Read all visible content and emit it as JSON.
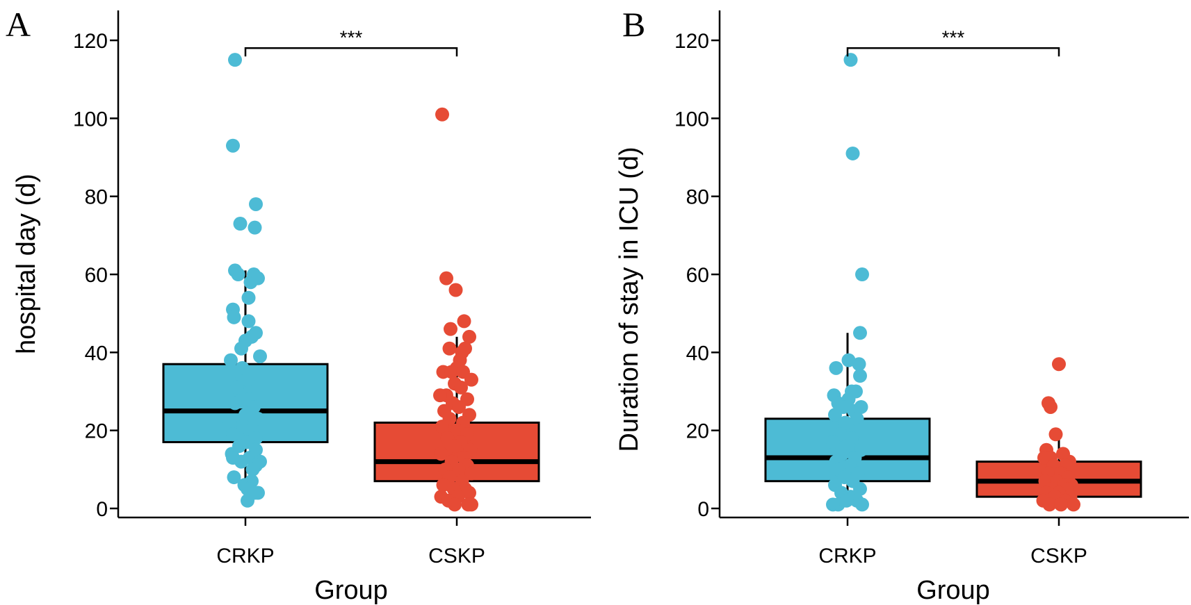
{
  "chart_data": [
    {
      "type": "boxplot-with-jitter",
      "panel_label": "A",
      "xlabel": "Group",
      "ylabel": "hospital day (d)",
      "ylim": [
        0,
        125
      ],
      "yticks": [
        0,
        20,
        40,
        60,
        80,
        100,
        120
      ],
      "categories": [
        "CRKP",
        "CSKP"
      ],
      "significance": {
        "groups": [
          "CRKP",
          "CSKP"
        ],
        "label": "***",
        "y": 118
      },
      "series": [
        {
          "name": "CRKP",
          "color": "#4DBBD5",
          "box": {
            "whisker_low": 2,
            "q1": 17,
            "median": 25,
            "q3": 37,
            "whisker_high": 61
          },
          "points": [
            {
              "offset": -0.1,
              "y": 115
            },
            {
              "offset": -0.12,
              "y": 93
            },
            {
              "offset": 0.1,
              "y": 78
            },
            {
              "offset": -0.05,
              "y": 73
            },
            {
              "offset": 0.09,
              "y": 72
            },
            {
              "offset": -0.1,
              "y": 61
            },
            {
              "offset": -0.07,
              "y": 60
            },
            {
              "offset": 0.05,
              "y": 58
            },
            {
              "offset": 0.08,
              "y": 60
            },
            {
              "offset": 0.12,
              "y": 59
            },
            {
              "offset": 0.03,
              "y": 54
            },
            {
              "offset": -0.12,
              "y": 51
            },
            {
              "offset": -0.11,
              "y": 49
            },
            {
              "offset": 0.03,
              "y": 48
            },
            {
              "offset": 0.1,
              "y": 45
            },
            {
              "offset": 0.0,
              "y": 43
            },
            {
              "offset": 0.06,
              "y": 44
            },
            {
              "offset": -0.04,
              "y": 41
            },
            {
              "offset": 0.14,
              "y": 39
            },
            {
              "offset": -0.14,
              "y": 38
            },
            {
              "offset": -0.13,
              "y": 35
            },
            {
              "offset": -0.03,
              "y": 36
            },
            {
              "offset": 0.02,
              "y": 33
            },
            {
              "offset": -0.08,
              "y": 31
            },
            {
              "offset": 0.04,
              "y": 28
            },
            {
              "offset": -0.1,
              "y": 27
            },
            {
              "offset": 0.08,
              "y": 26
            },
            {
              "offset": 0.0,
              "y": 24
            },
            {
              "offset": 0.12,
              "y": 23
            },
            {
              "offset": -0.15,
              "y": 22
            },
            {
              "offset": -0.02,
              "y": 21
            },
            {
              "offset": 0.06,
              "y": 20
            },
            {
              "offset": -0.12,
              "y": 19
            },
            {
              "offset": 0.1,
              "y": 18
            },
            {
              "offset": 0.02,
              "y": 17
            },
            {
              "offset": -0.06,
              "y": 16
            },
            {
              "offset": 0.1,
              "y": 15
            },
            {
              "offset": -0.13,
              "y": 14
            },
            {
              "offset": 0.04,
              "y": 13
            },
            {
              "offset": -0.12,
              "y": 13
            },
            {
              "offset": -0.04,
              "y": 12
            },
            {
              "offset": 0.14,
              "y": 12
            },
            {
              "offset": 0.1,
              "y": 11
            },
            {
              "offset": 0.07,
              "y": 10
            },
            {
              "offset": -0.11,
              "y": 8
            },
            {
              "offset": 0.06,
              "y": 7
            },
            {
              "offset": -0.01,
              "y": 6
            },
            {
              "offset": 0.02,
              "y": 5
            },
            {
              "offset": 0.12,
              "y": 4
            },
            {
              "offset": 0.09,
              "y": 4
            },
            {
              "offset": 0.02,
              "y": 2
            }
          ]
        },
        {
          "name": "CSKP",
          "color": "#E64B35",
          "box": {
            "whisker_low": 1,
            "q1": 7,
            "median": 12,
            "q3": 22,
            "whisker_high": 44
          },
          "points": [
            {
              "offset": -0.14,
              "y": 101
            },
            {
              "offset": -0.1,
              "y": 59
            },
            {
              "offset": -0.01,
              "y": 56
            },
            {
              "offset": 0.07,
              "y": 48
            },
            {
              "offset": -0.06,
              "y": 46
            },
            {
              "offset": 0.12,
              "y": 44
            },
            {
              "offset": 0.08,
              "y": 41
            },
            {
              "offset": -0.07,
              "y": 41
            },
            {
              "offset": 0.05,
              "y": 40
            },
            {
              "offset": 0.03,
              "y": 38
            },
            {
              "offset": 0.0,
              "y": 36
            },
            {
              "offset": -0.13,
              "y": 35
            },
            {
              "offset": -0.05,
              "y": 35
            },
            {
              "offset": 0.06,
              "y": 35
            },
            {
              "offset": 0.14,
              "y": 33
            },
            {
              "offset": -0.02,
              "y": 32
            },
            {
              "offset": 0.04,
              "y": 31
            },
            {
              "offset": -0.1,
              "y": 29
            },
            {
              "offset": -0.16,
              "y": 29
            },
            {
              "offset": 0.1,
              "y": 28
            },
            {
              "offset": -0.04,
              "y": 27
            },
            {
              "offset": 0.02,
              "y": 26
            },
            {
              "offset": -0.12,
              "y": 25
            },
            {
              "offset": 0.12,
              "y": 24
            },
            {
              "offset": -0.07,
              "y": 23
            },
            {
              "offset": 0.06,
              "y": 22
            },
            {
              "offset": -0.14,
              "y": 21
            },
            {
              "offset": 0.0,
              "y": 20
            },
            {
              "offset": 0.1,
              "y": 19
            },
            {
              "offset": -0.09,
              "y": 18
            },
            {
              "offset": 0.04,
              "y": 17
            },
            {
              "offset": -0.02,
              "y": 16
            },
            {
              "offset": 0.13,
              "y": 15
            },
            {
              "offset": -0.15,
              "y": 14
            },
            {
              "offset": 0.07,
              "y": 13
            },
            {
              "offset": -0.05,
              "y": 12
            },
            {
              "offset": 0.1,
              "y": 11
            },
            {
              "offset": -0.11,
              "y": 10
            },
            {
              "offset": 0.02,
              "y": 10
            },
            {
              "offset": 0.14,
              "y": 9
            },
            {
              "offset": -0.07,
              "y": 8
            },
            {
              "offset": 0.05,
              "y": 7
            },
            {
              "offset": -0.13,
              "y": 6
            },
            {
              "offset": 0.08,
              "y": 5
            },
            {
              "offset": -0.03,
              "y": 5
            },
            {
              "offset": 0.12,
              "y": 4
            },
            {
              "offset": -0.15,
              "y": 3
            },
            {
              "offset": 0.01,
              "y": 3
            },
            {
              "offset": -0.08,
              "y": 2
            },
            {
              "offset": 0.14,
              "y": 1
            },
            {
              "offset": 0.11,
              "y": 1
            },
            {
              "offset": -0.02,
              "y": 1
            }
          ]
        }
      ]
    },
    {
      "type": "boxplot-with-jitter",
      "panel_label": "B",
      "xlabel": "Group",
      "ylabel": "Duration of stay in ICU (d)",
      "ylim": [
        0,
        125
      ],
      "yticks": [
        0,
        20,
        40,
        60,
        80,
        100,
        120
      ],
      "categories": [
        "CRKP",
        "CSKP"
      ],
      "significance": {
        "groups": [
          "CRKP",
          "CSKP"
        ],
        "label": "***",
        "y": 118
      },
      "series": [
        {
          "name": "CRKP",
          "color": "#4DBBD5",
          "box": {
            "whisker_low": 1,
            "q1": 7,
            "median": 13,
            "q3": 23,
            "whisker_high": 45
          },
          "points": [
            {
              "offset": 0.03,
              "y": 115
            },
            {
              "offset": 0.05,
              "y": 91
            },
            {
              "offset": 0.14,
              "y": 60
            },
            {
              "offset": 0.12,
              "y": 45
            },
            {
              "offset": 0.01,
              "y": 38
            },
            {
              "offset": 0.11,
              "y": 37
            },
            {
              "offset": -0.11,
              "y": 36
            },
            {
              "offset": 0.12,
              "y": 34
            },
            {
              "offset": 0.08,
              "y": 30
            },
            {
              "offset": 0.04,
              "y": 30
            },
            {
              "offset": -0.13,
              "y": 29
            },
            {
              "offset": 0.01,
              "y": 28
            },
            {
              "offset": -0.09,
              "y": 27
            },
            {
              "offset": -0.04,
              "y": 26
            },
            {
              "offset": 0.13,
              "y": 26
            },
            {
              "offset": 0.06,
              "y": 25
            },
            {
              "offset": -0.12,
              "y": 24
            },
            {
              "offset": 0.09,
              "y": 23
            },
            {
              "offset": -0.02,
              "y": 22
            },
            {
              "offset": 0.11,
              "y": 20
            },
            {
              "offset": -0.07,
              "y": 19
            },
            {
              "offset": 0.04,
              "y": 18
            },
            {
              "offset": -0.14,
              "y": 17
            },
            {
              "offset": 0.0,
              "y": 16
            },
            {
              "offset": 0.13,
              "y": 15
            },
            {
              "offset": -0.05,
              "y": 14
            },
            {
              "offset": 0.07,
              "y": 13
            },
            {
              "offset": -0.11,
              "y": 12
            },
            {
              "offset": 0.02,
              "y": 11
            },
            {
              "offset": -0.08,
              "y": 10
            },
            {
              "offset": 0.1,
              "y": 9
            },
            {
              "offset": -0.03,
              "y": 8
            },
            {
              "offset": 0.05,
              "y": 7
            },
            {
              "offset": -0.12,
              "y": 6
            },
            {
              "offset": 0.12,
              "y": 5
            },
            {
              "offset": -0.06,
              "y": 4
            },
            {
              "offset": 0.03,
              "y": 3
            },
            {
              "offset": 0.09,
              "y": 2
            },
            {
              "offset": -0.01,
              "y": 2
            },
            {
              "offset": -0.09,
              "y": 1
            },
            {
              "offset": -0.14,
              "y": 1
            },
            {
              "offset": 0.14,
              "y": 1
            }
          ]
        },
        {
          "name": "CSKP",
          "color": "#E64B35",
          "box": {
            "whisker_low": 1,
            "q1": 3,
            "median": 7,
            "q3": 12,
            "whisker_high": 19
          },
          "points": [
            {
              "offset": 0.0,
              "y": 37
            },
            {
              "offset": -0.1,
              "y": 27
            },
            {
              "offset": -0.08,
              "y": 26
            },
            {
              "offset": -0.03,
              "y": 19
            },
            {
              "offset": -0.12,
              "y": 15
            },
            {
              "offset": 0.04,
              "y": 14
            },
            {
              "offset": -0.14,
              "y": 13
            },
            {
              "offset": -0.08,
              "y": 13
            },
            {
              "offset": 0.1,
              "y": 12
            },
            {
              "offset": 0.06,
              "y": 11
            },
            {
              "offset": -0.05,
              "y": 11
            },
            {
              "offset": 0.13,
              "y": 10
            },
            {
              "offset": -0.1,
              "y": 9
            },
            {
              "offset": 0.02,
              "y": 9
            },
            {
              "offset": 0.09,
              "y": 8
            },
            {
              "offset": -0.13,
              "y": 7
            },
            {
              "offset": -0.02,
              "y": 7
            },
            {
              "offset": 0.12,
              "y": 6
            },
            {
              "offset": 0.05,
              "y": 6
            },
            {
              "offset": -0.07,
              "y": 5
            },
            {
              "offset": 0.08,
              "y": 5
            },
            {
              "offset": -0.12,
              "y": 4
            },
            {
              "offset": 0.0,
              "y": 4
            },
            {
              "offset": 0.11,
              "y": 3
            },
            {
              "offset": -0.04,
              "y": 3
            },
            {
              "offset": -0.15,
              "y": 2
            },
            {
              "offset": 0.06,
              "y": 2
            },
            {
              "offset": 0.14,
              "y": 1
            },
            {
              "offset": -0.09,
              "y": 1
            },
            {
              "offset": 0.02,
              "y": 1
            }
          ]
        }
      ]
    }
  ]
}
